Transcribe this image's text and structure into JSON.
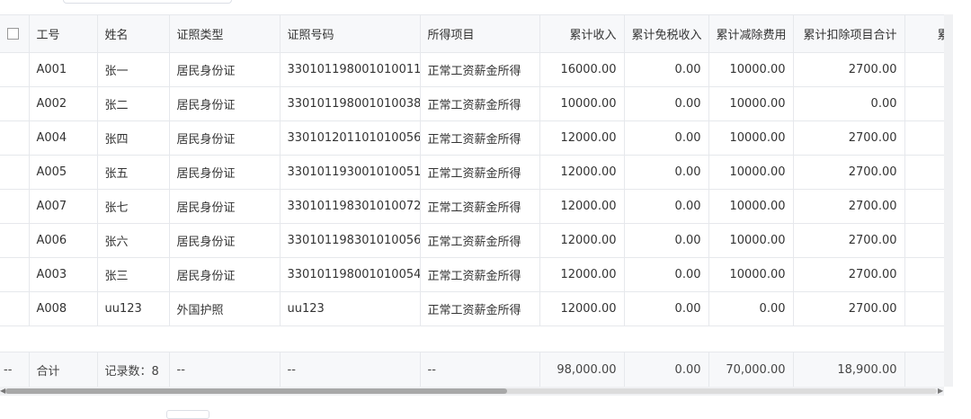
{
  "columns": [
    "",
    "工号",
    "姓名",
    "证照类型",
    "证照号码",
    "所得项目",
    "累计收入",
    "累计免税收入",
    "累计减除费用",
    "累计扣除项目合计",
    "累计准"
  ],
  "rows": [
    [
      "A001",
      "张一",
      "居民身份证",
      "330101198001010011",
      "正常工资薪金所得",
      "16000.00",
      "0.00",
      "10000.00",
      "2700.00"
    ],
    [
      "A002",
      "张二",
      "居民身份证",
      "330101198001010038",
      "正常工资薪金所得",
      "10000.00",
      "0.00",
      "10000.00",
      "0.00"
    ],
    [
      "A004",
      "张四",
      "居民身份证",
      "330101201101010056",
      "正常工资薪金所得",
      "12000.00",
      "0.00",
      "10000.00",
      "2700.00"
    ],
    [
      "A005",
      "张五",
      "居民身份证",
      "330101193001010051",
      "正常工资薪金所得",
      "12000.00",
      "0.00",
      "10000.00",
      "2700.00"
    ],
    [
      "A007",
      "张七",
      "居民身份证",
      "330101198301010072",
      "正常工资薪金所得",
      "12000.00",
      "0.00",
      "10000.00",
      "2700.00"
    ],
    [
      "A006",
      "张六",
      "居民身份证",
      "330101198301010056",
      "正常工资薪金所得",
      "12000.00",
      "0.00",
      "10000.00",
      "2700.00"
    ],
    [
      "A003",
      "张三",
      "居民身份证",
      "330101198001010054",
      "正常工资薪金所得",
      "12000.00",
      "0.00",
      "10000.00",
      "2700.00"
    ],
    [
      "A008",
      "uu123",
      "外国护照",
      "uu123",
      "正常工资薪金所得",
      "12000.00",
      "0.00",
      "0.00",
      "2700.00"
    ]
  ],
  "footer": [
    "--",
    "合计",
    "记录数：8",
    "--",
    "--",
    "--",
    "98,000.00",
    "0.00",
    "70,000.00",
    "18,900.00",
    ""
  ],
  "scroll_position_percent": 0
}
